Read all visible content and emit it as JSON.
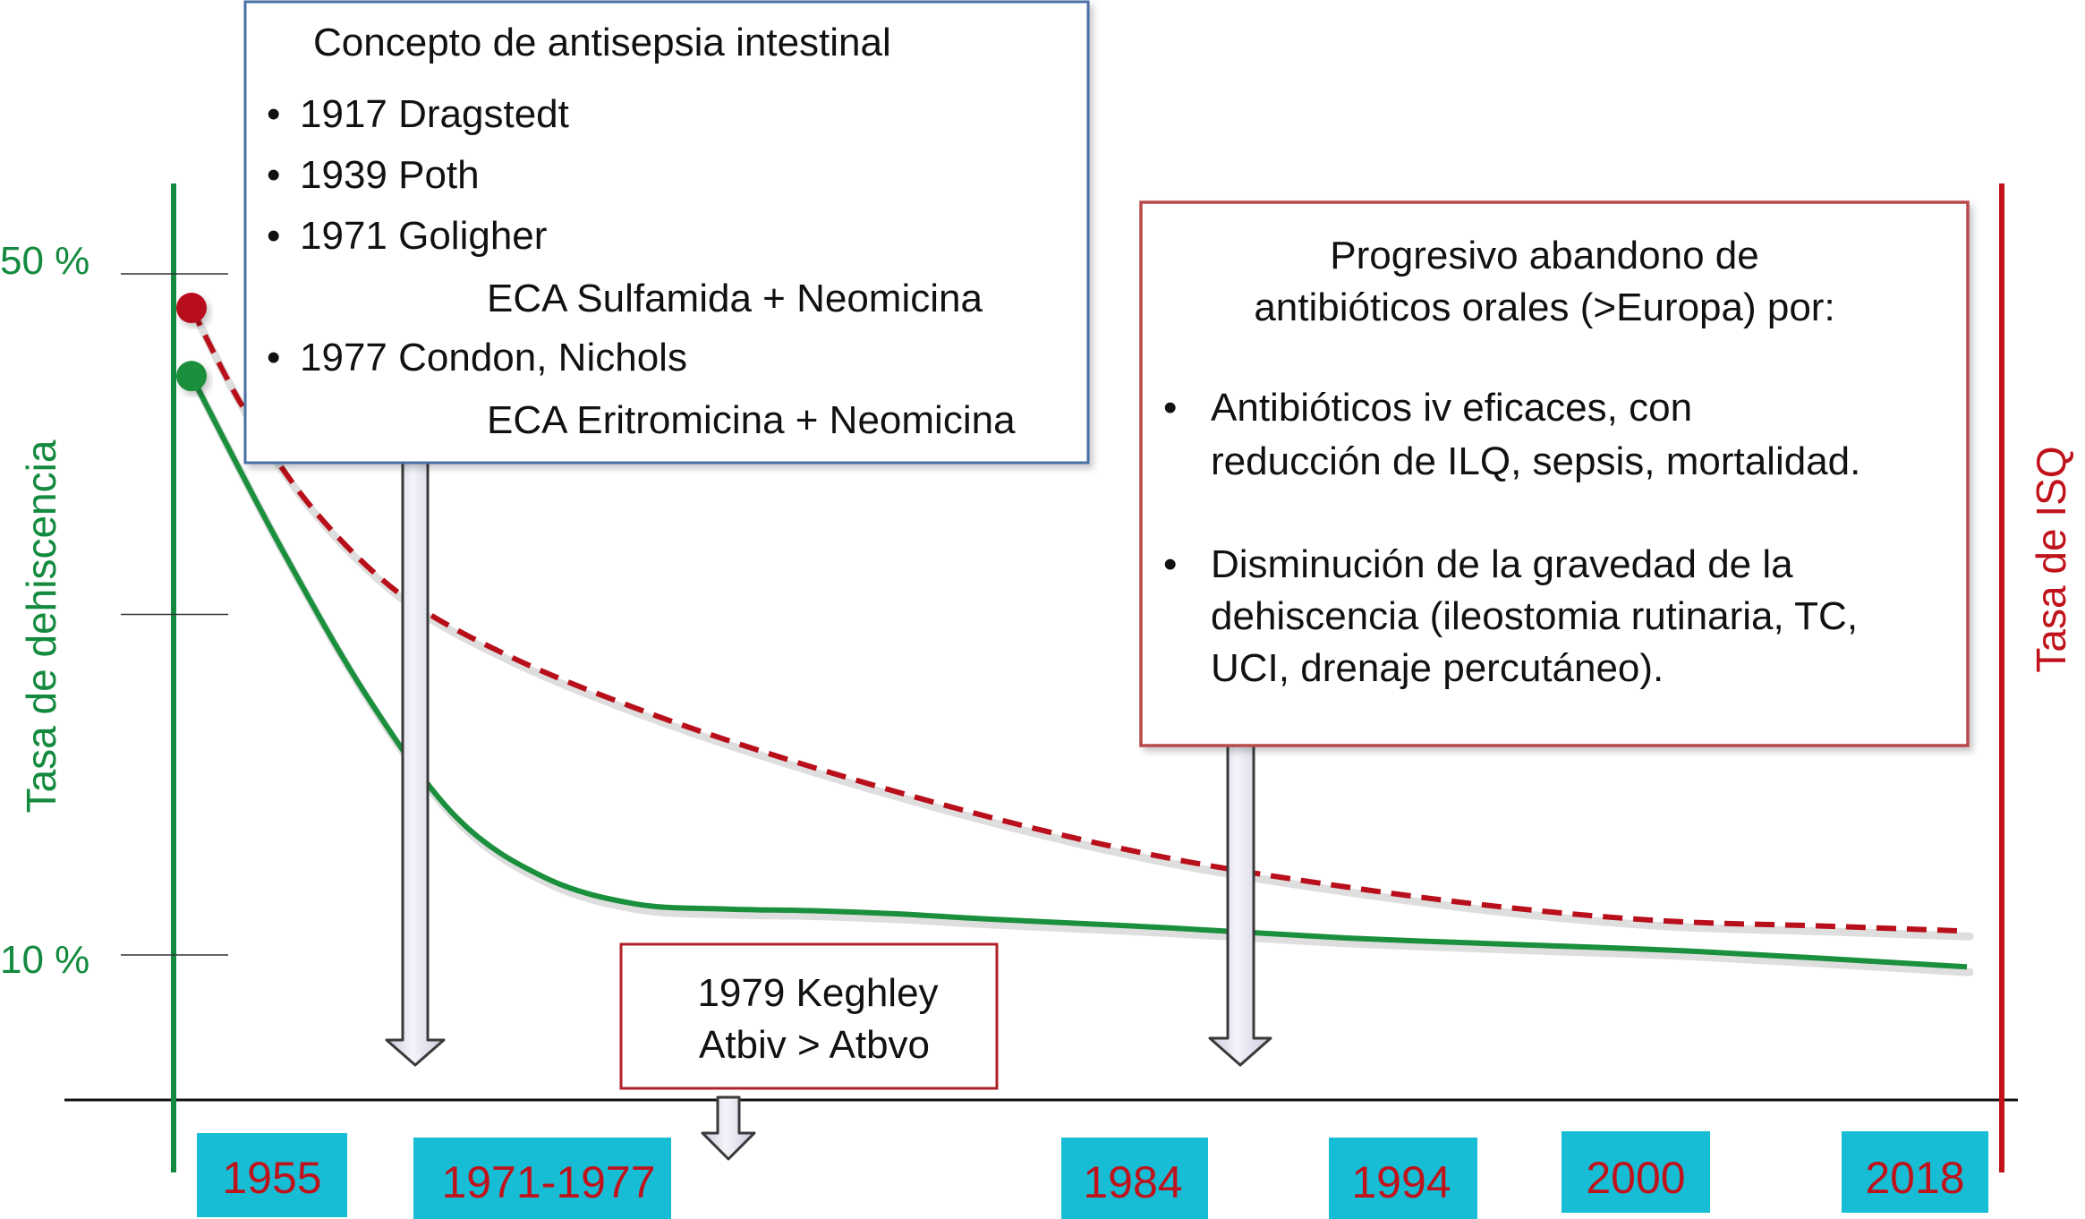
{
  "colors": {
    "left_axis": "#138a3e",
    "right_axis": "#c0121b",
    "dehiscence_line": "#1a8f3c",
    "isq_line": "#b80f1a",
    "year_box": "#17bdd5",
    "year_text": "#c0121b",
    "blue_box_border": "#4a6fa5",
    "red_box_border": "#b84a4a",
    "arrow_fill": "#e2e3ef",
    "arrow_stroke": "#444444"
  },
  "left_axis": {
    "title": "Tasa de dehiscencia",
    "ticks": [
      {
        "label": "50 %",
        "value": 50
      },
      {
        "label": "",
        "value": 30
      },
      {
        "label": "10 %",
        "value": 10
      }
    ]
  },
  "right_axis": {
    "title": "Tasa de ISQ"
  },
  "year_labels": [
    "1955",
    "1971-1977",
    "1984",
    "1994",
    "2000",
    "2018"
  ],
  "info_box_antisepsis": {
    "title": "Concepto de antisepsia intestinal",
    "items": [
      {
        "bullet": "•",
        "text": "1917 Dragstedt"
      },
      {
        "bullet": "•",
        "text": "1939 Poth"
      },
      {
        "bullet": "•",
        "text": "1971 Goligher"
      },
      {
        "bullet": "",
        "text": "ECA Sulfamida + Neomicina"
      },
      {
        "bullet": "•",
        "text": "1977 Condon, Nichols"
      },
      {
        "bullet": "",
        "text": "ECA Eritromicina + Neomicina"
      }
    ]
  },
  "info_box_abandon": {
    "title_line1": "Progresivo abandono de",
    "title_line2": "antibióticos orales (>Europa) por:",
    "bullets": [
      {
        "lines": [
          "Antibióticos iv eficaces, con",
          "reducción de ILQ, sepsis, mortalidad."
        ]
      },
      {
        "lines": [
          "Disminución de la gravedad de la",
          "dehiscencia (ileostomia rutinaria, TC,",
          "UCI, drenaje percutáneo)."
        ]
      }
    ]
  },
  "info_box_keghley": {
    "line1": "1979 Keghley",
    "line2": "Atbiv > Atbvo"
  },
  "chart_data": {
    "type": "line",
    "x_categories": [
      "1955",
      "1971-1977",
      "1984",
      "1994",
      "2000",
      "2018"
    ],
    "left_ylabel": "Tasa de dehiscencia",
    "right_ylabel": "Tasa de ISQ",
    "y_ticks": [
      "50 %",
      "10 %"
    ],
    "ylim": [
      0,
      50
    ],
    "series": [
      {
        "style": "solid",
        "color": "#1a8f3c",
        "points": [
          {
            "x": 0.0,
            "y": 44.0
          },
          {
            "x": 0.05,
            "y": 34.0
          },
          {
            "x": 0.1,
            "y": 25.0
          },
          {
            "x": 0.15,
            "y": 18.0
          },
          {
            "x": 0.2,
            "y": 14.5
          },
          {
            "x": 0.25,
            "y": 13.0
          },
          {
            "x": 0.3,
            "y": 12.7
          },
          {
            "x": 0.35,
            "y": 12.6
          },
          {
            "x": 0.4,
            "y": 12.4
          },
          {
            "x": 0.45,
            "y": 12.1
          },
          {
            "x": 0.55,
            "y": 11.6
          },
          {
            "x": 0.65,
            "y": 11.0
          },
          {
            "x": 0.75,
            "y": 10.6
          },
          {
            "x": 0.85,
            "y": 10.2
          },
          {
            "x": 1.0,
            "y": 9.3
          }
        ]
      },
      {
        "style": "dashed",
        "color": "#b80f1a",
        "points": [
          {
            "x": 0.0,
            "y": 48.0
          },
          {
            "x": 0.03,
            "y": 42.0
          },
          {
            "x": 0.07,
            "y": 36.0
          },
          {
            "x": 0.12,
            "y": 31.0
          },
          {
            "x": 0.18,
            "y": 27.5
          },
          {
            "x": 0.25,
            "y": 24.5
          },
          {
            "x": 0.32,
            "y": 22.0
          },
          {
            "x": 0.4,
            "y": 19.5
          },
          {
            "x": 0.48,
            "y": 17.3
          },
          {
            "x": 0.56,
            "y": 15.5
          },
          {
            "x": 0.65,
            "y": 14.0
          },
          {
            "x": 0.74,
            "y": 12.8
          },
          {
            "x": 0.83,
            "y": 12.0
          },
          {
            "x": 0.92,
            "y": 11.7
          },
          {
            "x": 1.0,
            "y": 11.4
          }
        ]
      }
    ]
  }
}
